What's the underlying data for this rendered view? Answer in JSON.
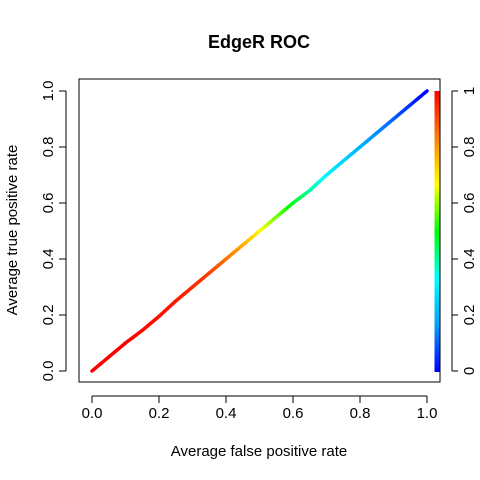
{
  "chart_data": {
    "type": "line",
    "title": "EdgeR ROC",
    "xlabel": "Average false positive rate",
    "ylabel": "Average true positive rate",
    "xlim": [
      0.0,
      1.0
    ],
    "ylim": [
      0.0,
      1.0
    ],
    "x_ticks": [
      "0.0",
      "0.2",
      "0.4",
      "0.6",
      "0.8",
      "1.0"
    ],
    "y_ticks": [
      "0.0",
      "0.2",
      "0.4",
      "0.6",
      "0.8",
      "1.0"
    ],
    "colorbar_ticks": [
      "0",
      "0.2",
      "0.4",
      "0.6",
      "0.8",
      "1"
    ],
    "grid": false,
    "legend": "none",
    "color_scale": [
      "#0000ff",
      "#00a0ff",
      "#00ffff",
      "#00ff00",
      "#ffff00",
      "#ff8000",
      "#ff0000"
    ],
    "series": [
      {
        "points": [
          {
            "x": 0.0,
            "y": 0.0,
            "cutoff": 1.0
          },
          {
            "x": 0.05,
            "y": 0.05,
            "cutoff": 1.0
          },
          {
            "x": 0.1,
            "y": 0.1,
            "cutoff": 1.0
          },
          {
            "x": 0.15,
            "y": 0.145,
            "cutoff": 0.99
          },
          {
            "x": 0.2,
            "y": 0.195,
            "cutoff": 0.98
          },
          {
            "x": 0.25,
            "y": 0.25,
            "cutoff": 0.97
          },
          {
            "x": 0.3,
            "y": 0.3,
            "cutoff": 0.95
          },
          {
            "x": 0.35,
            "y": 0.35,
            "cutoff": 0.92
          },
          {
            "x": 0.4,
            "y": 0.4,
            "cutoff": 0.86
          },
          {
            "x": 0.45,
            "y": 0.45,
            "cutoff": 0.78
          },
          {
            "x": 0.5,
            "y": 0.5,
            "cutoff": 0.68
          },
          {
            "x": 0.55,
            "y": 0.55,
            "cutoff": 0.58
          },
          {
            "x": 0.6,
            "y": 0.6,
            "cutoff": 0.48
          },
          {
            "x": 0.65,
            "y": 0.645,
            "cutoff": 0.4
          },
          {
            "x": 0.7,
            "y": 0.7,
            "cutoff": 0.32
          },
          {
            "x": 0.75,
            "y": 0.75,
            "cutoff": 0.26
          },
          {
            "x": 0.8,
            "y": 0.8,
            "cutoff": 0.2
          },
          {
            "x": 0.85,
            "y": 0.85,
            "cutoff": 0.15
          },
          {
            "x": 0.9,
            "y": 0.9,
            "cutoff": 0.1
          },
          {
            "x": 0.95,
            "y": 0.95,
            "cutoff": 0.05
          },
          {
            "x": 1.0,
            "y": 1.0,
            "cutoff": 0.0
          }
        ]
      }
    ]
  }
}
